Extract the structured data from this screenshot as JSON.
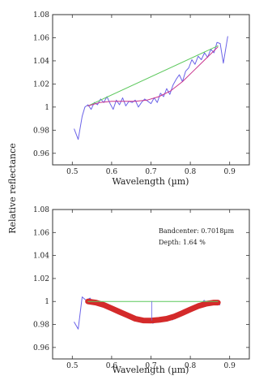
{
  "chart_data": [
    {
      "type": "line",
      "title": "",
      "xlabel": "Wavelength (µm)",
      "ylabel": "Relative reflectance",
      "xlim": [
        0.45,
        0.95
      ],
      "ylim": [
        0.95,
        1.08
      ],
      "xticks": [
        "0.5",
        "0.6",
        "0.7",
        "0.8",
        "0.9"
      ],
      "yticks": [
        "0.96",
        "0.98",
        "1",
        "1.02",
        "1.04",
        "1.06",
        "1.08"
      ],
      "grid": false,
      "series": [
        {
          "color": "#6b63e8",
          "style": "solid",
          "x": [
            0.505,
            0.515,
            0.525,
            0.532,
            0.54,
            0.548,
            0.556,
            0.564,
            0.572,
            0.58,
            0.588,
            0.596,
            0.604,
            0.612,
            0.62,
            0.628,
            0.636,
            0.644,
            0.652,
            0.66,
            0.668,
            0.676,
            0.684,
            0.692,
            0.7,
            0.708,
            0.716,
            0.724,
            0.732,
            0.74,
            0.748,
            0.756,
            0.764,
            0.772,
            0.78,
            0.788,
            0.796,
            0.804,
            0.812,
            0.82,
            0.828,
            0.836,
            0.844,
            0.852,
            0.86,
            0.868,
            0.876,
            0.884,
            0.895
          ],
          "y": [
            0.981,
            0.972,
            0.992,
            1.0,
            1.002,
            0.998,
            1.004,
            1.002,
            1.007,
            1.004,
            1.009,
            1.003,
            0.998,
            1.006,
            1.002,
            1.008,
            1.001,
            1.005,
            1.004,
            1.006,
            1.0,
            1.004,
            1.007,
            1.005,
            1.003,
            1.008,
            1.004,
            1.012,
            1.009,
            1.016,
            1.011,
            1.019,
            1.024,
            1.028,
            1.022,
            1.031,
            1.034,
            1.041,
            1.037,
            1.044,
            1.041,
            1.047,
            1.043,
            1.05,
            1.047,
            1.056,
            1.055,
            1.038,
            1.061
          ]
        },
        {
          "color": "#5cc85c",
          "style": "solid",
          "x": [
            0.54,
            0.87
          ],
          "y": [
            1.001,
            1.053
          ]
        },
        {
          "color": "#c8328c",
          "style": "solid",
          "x": [
            0.54,
            0.57,
            0.6,
            0.63,
            0.66,
            0.69,
            0.72,
            0.75,
            0.78,
            0.81,
            0.84,
            0.87
          ],
          "y": [
            1.001,
            1.004,
            1.005,
            1.005,
            1.005,
            1.006,
            1.009,
            1.014,
            1.022,
            1.032,
            1.042,
            1.052
          ]
        }
      ],
      "annotations": []
    },
    {
      "type": "line",
      "title": "",
      "xlabel": "Wavelength (µm)",
      "ylabel": "",
      "xlim": [
        0.45,
        0.95
      ],
      "ylim": [
        0.95,
        1.08
      ],
      "xticks": [
        "0.5",
        "0.6",
        "0.7",
        "0.8",
        "0.9"
      ],
      "yticks": [
        "0.96",
        "0.98",
        "1",
        "1.02",
        "1.04",
        "1.06",
        "1.08"
      ],
      "grid": false,
      "series": [
        {
          "color": "#6b63e8",
          "style": "solid",
          "x": [
            0.505,
            0.515,
            0.525,
            0.535,
            0.545,
            0.555,
            0.565,
            0.575,
            0.585,
            0.595,
            0.605,
            0.615,
            0.625,
            0.635,
            0.645,
            0.655,
            0.665,
            0.675,
            0.685,
            0.695,
            0.705,
            0.715,
            0.725,
            0.735,
            0.745,
            0.755,
            0.765,
            0.775,
            0.785,
            0.795,
            0.805,
            0.815,
            0.825,
            0.835,
            0.845,
            0.855,
            0.865,
            0.875
          ],
          "y": [
            0.982,
            0.976,
            1.004,
            1.001,
            1.003,
            0.998,
            1.0,
            0.997,
            0.997,
            0.993,
            0.992,
            0.992,
            0.989,
            0.989,
            0.985,
            0.986,
            0.984,
            0.983,
            0.982,
            0.984,
            0.981,
            0.983,
            0.982,
            0.984,
            0.985,
            0.984,
            0.988,
            0.988,
            0.99,
            0.993,
            0.994,
            0.995,
            0.997,
            1.001,
            0.998,
            0.999,
            1.001,
            0.997
          ]
        },
        {
          "color": "#d42a2a",
          "style": "thick",
          "x": [
            0.54,
            0.56,
            0.58,
            0.6,
            0.62,
            0.64,
            0.66,
            0.68,
            0.7,
            0.72,
            0.74,
            0.76,
            0.78,
            0.8,
            0.82,
            0.84,
            0.86,
            0.87
          ],
          "y": [
            1.0,
            0.999,
            0.997,
            0.994,
            0.991,
            0.988,
            0.985,
            0.9835,
            0.9834,
            0.984,
            0.985,
            0.987,
            0.99,
            0.993,
            0.996,
            0.998,
            0.999,
            0.999
          ]
        },
        {
          "color": "#5cc85c",
          "style": "solid",
          "x": [
            0.54,
            0.87
          ],
          "y": [
            1.0,
            1.0
          ]
        },
        {
          "color": "#6b63e8",
          "style": "thin",
          "x": [
            0.7018,
            0.7018
          ],
          "y": [
            1.0,
            0.9836
          ]
        }
      ],
      "annotations": [
        {
          "label": "Bandcenter: 0.7018µm"
        },
        {
          "label": "Depth: 1.64 %"
        }
      ]
    }
  ],
  "figure": {
    "shared_ylabel": "Relative reflectance"
  }
}
